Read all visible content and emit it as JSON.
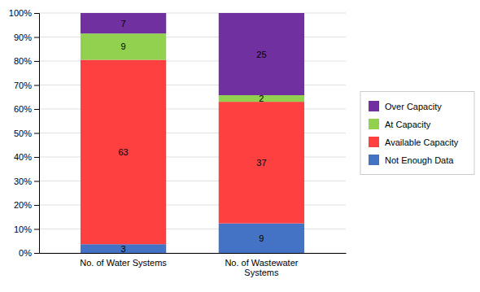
{
  "chart_data": {
    "type": "bar",
    "stacked": true,
    "grid": true,
    "legend": "right",
    "categories": [
      "No. of Water Systems",
      "No. of Wastewater\nSystems"
    ],
    "series": [
      {
        "name": "Not Enough Data",
        "color": "#4472C4",
        "values": [
          0.036585365853658534,
          0.1232876712328767
        ],
        "counts": [
          3,
          9
        ]
      },
      {
        "name": "Available Capacity",
        "color": "#FF4040",
        "values": [
          0.7682926829268293,
          0.5068493150684932
        ],
        "counts": [
          63,
          37
        ]
      },
      {
        "name": "At Capacity",
        "color": "#92D050",
        "values": [
          0.10975609756097561,
          0.0273972602739726
        ],
        "counts": [
          9,
          2
        ]
      },
      {
        "name": "Over Capacity",
        "color": "#7030A0",
        "values": [
          0.08536585365853659,
          0.3424657534246575
        ],
        "counts": [
          7,
          25
        ]
      }
    ],
    "ylim": [
      0,
      1.0
    ],
    "yticks": [
      {
        "value": 0.0,
        "label": "0%"
      },
      {
        "value": 0.1,
        "label": "10%"
      },
      {
        "value": 0.2,
        "label": "20%"
      },
      {
        "value": 0.3,
        "label": "30%"
      },
      {
        "value": 0.4,
        "label": "40%"
      },
      {
        "value": 0.5,
        "label": "50%"
      },
      {
        "value": 0.6,
        "label": "60%"
      },
      {
        "value": 0.7,
        "label": "70%"
      },
      {
        "value": 0.8,
        "label": "80%"
      },
      {
        "value": 0.9,
        "label": "90%"
      },
      {
        "value": 1.0,
        "label": "100%"
      }
    ]
  }
}
